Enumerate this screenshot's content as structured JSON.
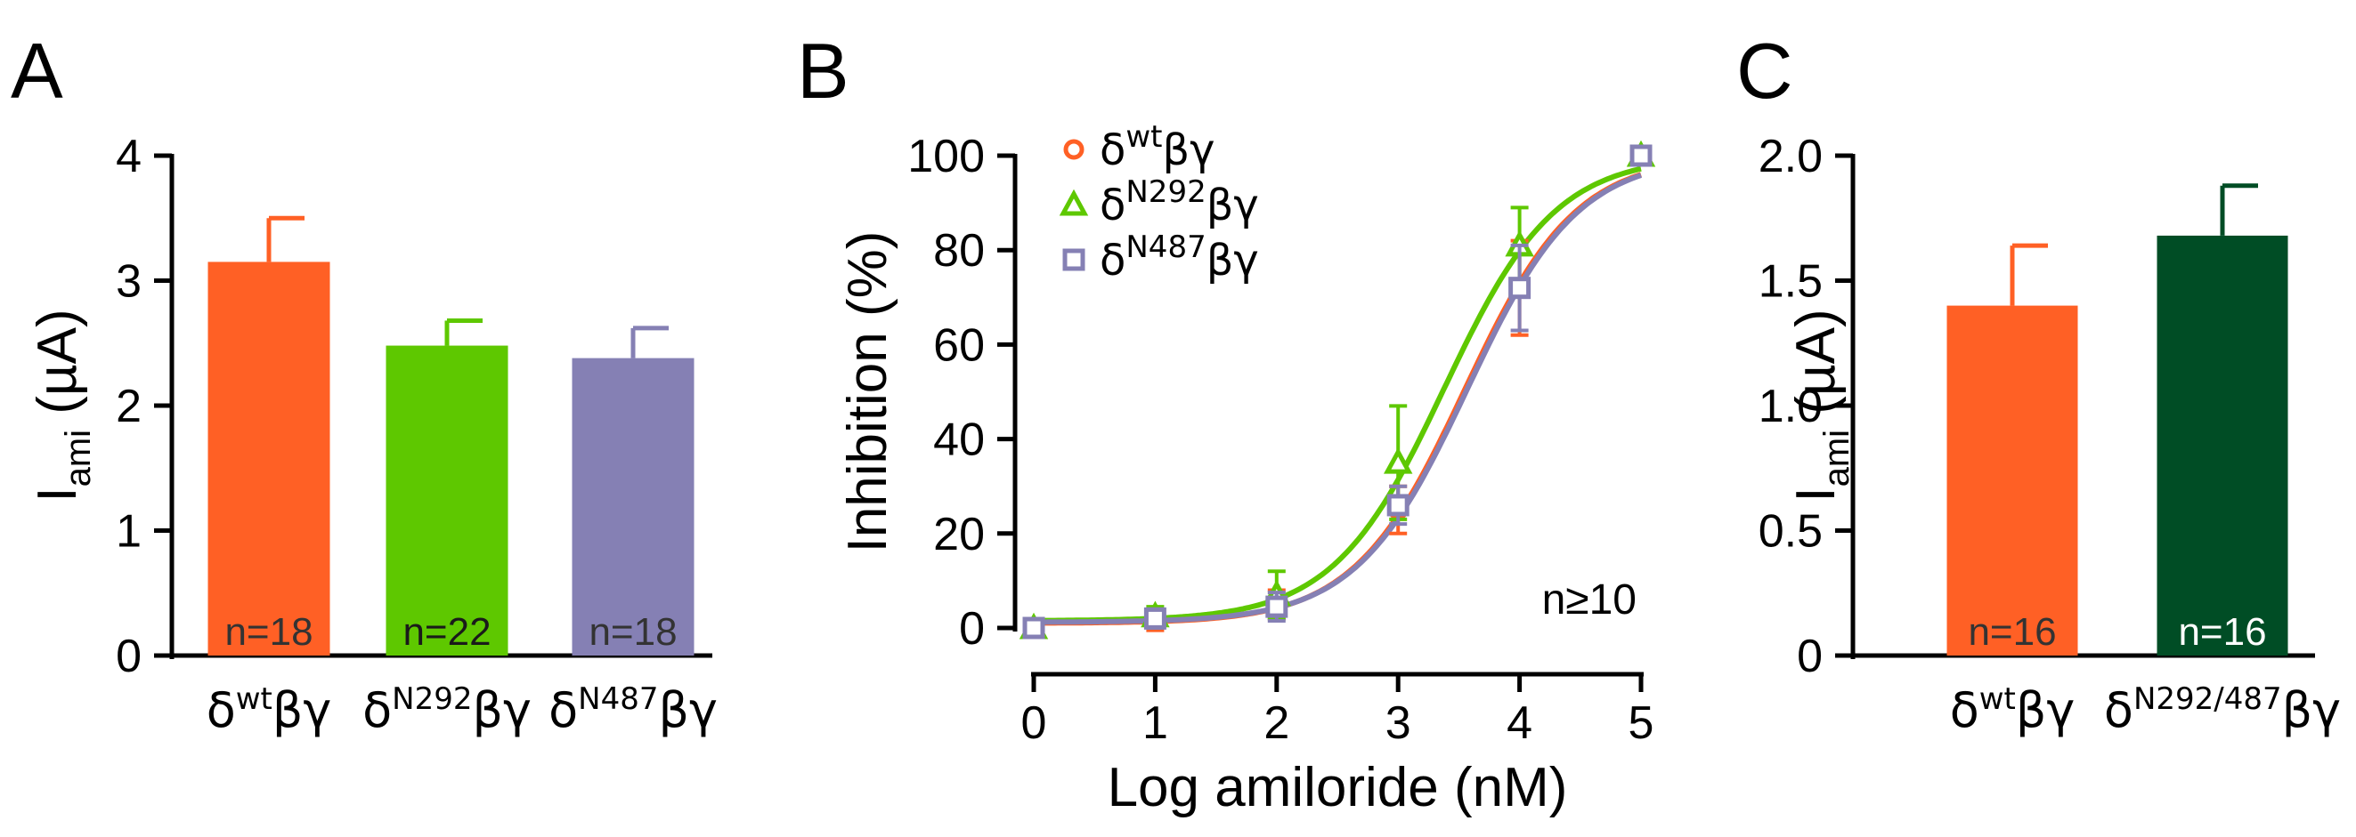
{
  "chart_data": [
    {
      "panel": "A",
      "type": "bar",
      "ylabel": "I",
      "ylabel_sub": "ami",
      "ylabel_unit": " (µA)",
      "ylim": [
        0,
        4
      ],
      "yticks": [
        0,
        1,
        2,
        3,
        4
      ],
      "ytick_labels": [
        "0",
        "1",
        "2",
        "3",
        "4"
      ],
      "categories": [
        {
          "base": "δ",
          "sup": "wt",
          "tail": "βγ"
        },
        {
          "base": "δ",
          "sup": "N292",
          "tail": "βγ"
        },
        {
          "base": "δ",
          "sup": "N487",
          "tail": "βγ"
        }
      ],
      "values": [
        3.15,
        2.48,
        2.38
      ],
      "errors": [
        0.35,
        0.2,
        0.24
      ],
      "colors": [
        "#ff6025",
        "#5ec800",
        "#8580b4"
      ],
      "n_labels": [
        "n=18",
        "n=22",
        "n=18"
      ],
      "n_label_colors": [
        "#333333",
        "#1a1a1a",
        "#333333"
      ]
    },
    {
      "panel": "B",
      "type": "line",
      "xlabel": "Log amiloride (nM)",
      "ylabel": "Inhibition (%)",
      "xlim": [
        0,
        5
      ],
      "ylim": [
        0,
        100
      ],
      "xticks": [
        0,
        1,
        2,
        3,
        4,
        5
      ],
      "xtick_labels": [
        "0",
        "1",
        "2",
        "3",
        "4",
        "5"
      ],
      "yticks": [
        0,
        20,
        40,
        60,
        80,
        100
      ],
      "ytick_labels": [
        "0",
        "20",
        "40",
        "60",
        "80",
        "100"
      ],
      "annotation": "n≥10",
      "series": [
        {
          "name": {
            "base": "δ",
            "sup": "wt",
            "tail": "βγ"
          },
          "marker": "circle",
          "color": "#ff6025",
          "x": [
            0,
            1,
            2,
            3,
            4,
            5
          ],
          "y": [
            0,
            1.5,
            5,
            25,
            72,
            100
          ],
          "err": [
            1,
            2,
            3,
            5,
            10,
            0
          ],
          "ic50_log": 3.55,
          "hill": 0.95,
          "bottom": 1
        },
        {
          "name": {
            "base": "δ",
            "sup": "N292",
            "tail": "βγ"
          },
          "marker": "triangle",
          "color": "#5ec800",
          "x": [
            0,
            1,
            2,
            3,
            4,
            5
          ],
          "y": [
            0,
            2.5,
            7,
            35,
            81,
            100
          ],
          "err": [
            1,
            2,
            5,
            12,
            8,
            0
          ],
          "ic50_log": 3.38,
          "hill": 0.95,
          "bottom": 1.5
        },
        {
          "name": {
            "base": "δ",
            "sup": "N487",
            "tail": "βγ"
          },
          "marker": "square",
          "color": "#8580b4",
          "x": [
            0,
            1,
            2,
            3,
            4,
            5
          ],
          "y": [
            0,
            2,
            4.5,
            26,
            72,
            100
          ],
          "err": [
            1,
            2,
            3,
            4,
            9,
            0
          ],
          "ic50_log": 3.57,
          "hill": 0.95,
          "bottom": 1.2
        }
      ]
    },
    {
      "panel": "C",
      "type": "bar",
      "ylabel": "I",
      "ylabel_sub": "ami",
      "ylabel_unit": " (µA)",
      "ylim": [
        0,
        2
      ],
      "yticks": [
        0,
        0.5,
        1,
        1.5,
        2
      ],
      "ytick_labels": [
        "0",
        "0.5",
        "1.0",
        "1.5",
        "2.0"
      ],
      "categories": [
        {
          "base": "δ",
          "sup": "wt",
          "tail": "βγ"
        },
        {
          "base": "δ",
          "sup": "N292/487",
          "tail": "βγ"
        }
      ],
      "values": [
        1.4,
        1.68
      ],
      "errors": [
        0.24,
        0.2
      ],
      "colors": [
        "#ff6025",
        "#004d25"
      ],
      "n_labels": [
        "n=16",
        "n=16"
      ],
      "n_label_colors": [
        "#333333",
        "#ffffff"
      ]
    }
  ]
}
